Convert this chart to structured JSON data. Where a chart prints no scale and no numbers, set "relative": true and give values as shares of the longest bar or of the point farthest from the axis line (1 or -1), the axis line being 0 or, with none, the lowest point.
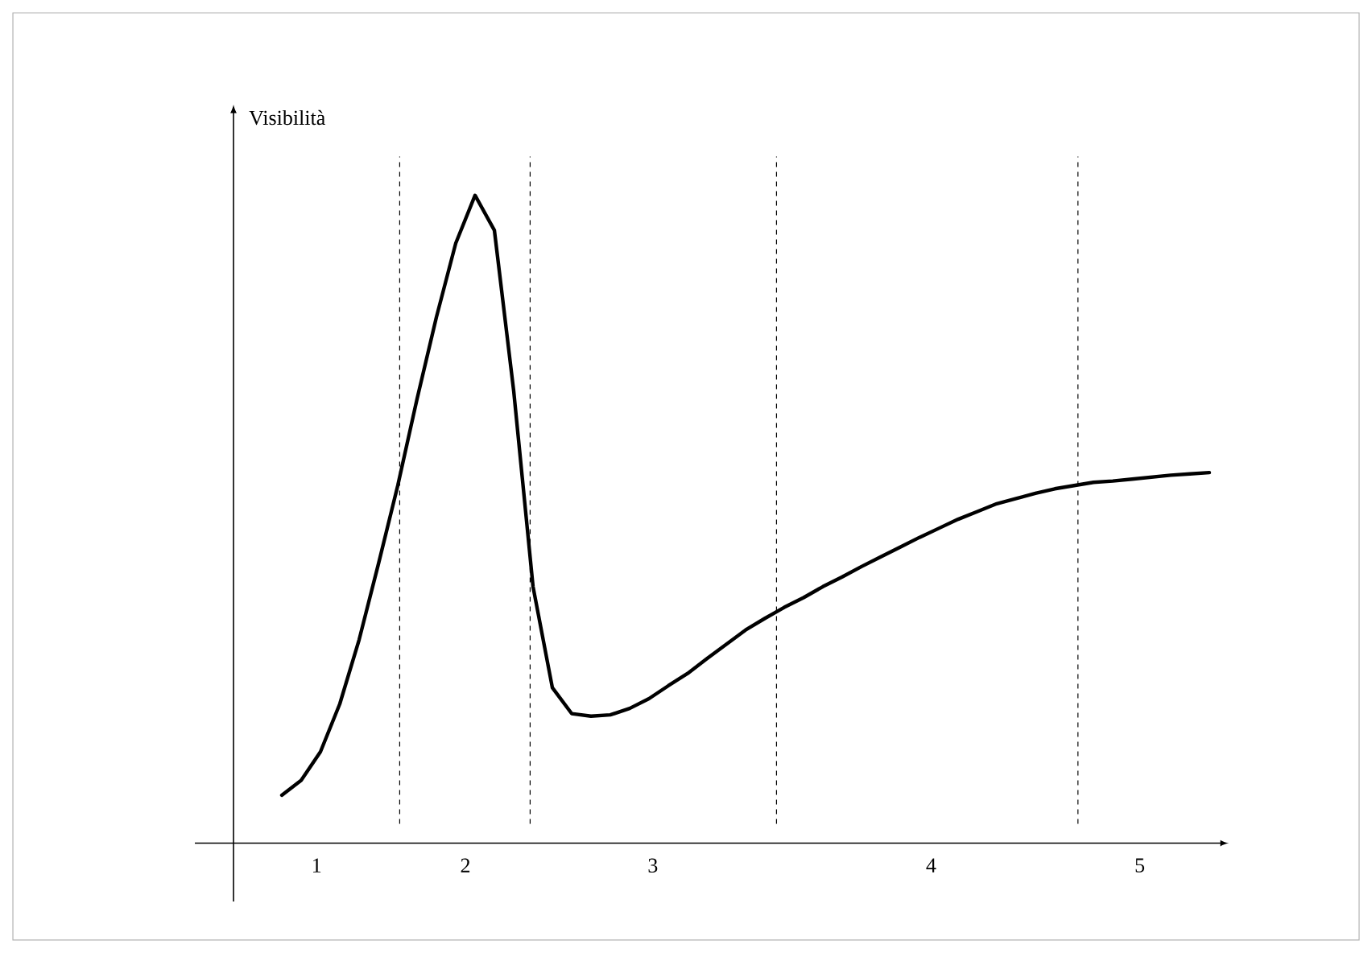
{
  "chart_data": {
    "type": "line",
    "relative": true,
    "ylabel": "Visibilità",
    "categories": [
      null,
      null,
      null,
      null,
      null,
      null,
      null,
      null,
      null,
      null,
      null,
      null,
      null,
      null,
      null,
      null,
      null,
      null,
      null,
      null,
      null,
      null,
      null,
      null,
      null,
      null,
      null,
      null,
      null,
      null,
      null,
      null,
      null,
      null,
      null,
      null,
      null,
      null,
      null,
      null,
      null,
      null,
      null,
      null,
      null,
      null,
      null,
      null,
      null
    ],
    "series": [
      {
        "color": "#000000",
        "values": [
          0.074,
          0.097,
          0.141,
          0.215,
          0.314,
          0.431,
          0.552,
          0.686,
          0.812,
          0.926,
          1,
          0.946,
          0.698,
          0.396,
          0.24,
          0.2,
          0.196,
          0.198,
          0.208,
          0.223,
          0.243,
          0.262,
          0.285,
          0.307,
          0.329,
          0.347,
          0.364,
          0.379,
          0.396,
          0.411,
          0.427,
          0.442,
          0.457,
          0.472,
          0.486,
          0.5,
          0.512,
          0.524,
          0.532,
          0.54,
          0.547,
          0.552,
          0.557,
          0.559,
          0.562,
          0.565,
          0.568,
          0.57,
          0.572
        ]
      }
    ],
    "annotations": [
      "1",
      "2",
      "3",
      "4",
      "5"
    ],
    "marker": "none",
    "line_style": "solid"
  }
}
